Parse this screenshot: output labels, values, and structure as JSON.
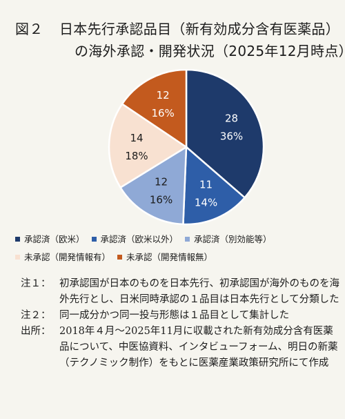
{
  "title": {
    "figure_label": "図２",
    "line1": "日本先行承認品目（新有効成分含有医薬品）",
    "line2": "の海外承認・開発状況（2025年12月時点）"
  },
  "chart_data": {
    "type": "pie",
    "title": "日本先行承認品目（新有効成分含有医薬品）の海外承認・開発状況（2025年12月時点）",
    "slices": [
      {
        "label": "承認済（欧米）",
        "value": 28,
        "percent_label": "36%",
        "color": "#1e3a6b",
        "text_color": "#ffffff"
      },
      {
        "label": "承認済（欧米以外）",
        "value": 11,
        "percent_label": "14%",
        "color": "#2e5ea8",
        "text_color": "#ffffff"
      },
      {
        "label": "承認済（別効能等）",
        "value": 12,
        "percent_label": "16%",
        "color": "#8fa9d6",
        "text_color": "#1c1c1c"
      },
      {
        "label": "未承認（開発情報有）",
        "value": 14,
        "percent_label": "18%",
        "color": "#f8e1d1",
        "text_color": "#1c1c1c"
      },
      {
        "label": "未承認（開発情報無）",
        "value": 12,
        "percent_label": "16%",
        "color": "#c35a1e",
        "text_color": "#ffffff"
      }
    ],
    "start_angle_deg": 0,
    "direction": "clockwise",
    "legend_position": "bottom"
  },
  "notes": [
    {
      "label": "注１：",
      "text": "初承認国が日本のものを日本先行、初承認国が海外のものを海外先行とし、日米同時承認の１品目は日本先行として分類した"
    },
    {
      "label": "注２：",
      "text": "同一成分かつ同一投与形態は１品目として集計した"
    },
    {
      "label": "出所：",
      "text": "2018年４月～2025年11月に収載された新有効成分含有医薬品について、中医協資料、インタビューフォーム、明日の新薬（テクノミック制作）をもとに医薬産業政策研究所にて作成"
    }
  ]
}
